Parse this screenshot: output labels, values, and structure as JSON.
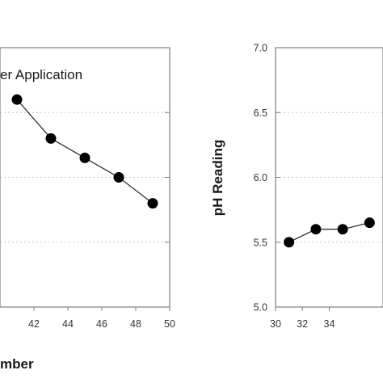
{
  "chart_data": [
    {
      "type": "line",
      "xlabel": "mber",
      "ylabel": "",
      "xlim": [
        40,
        50
      ],
      "ylim": [
        5.0,
        7.0
      ],
      "x_ticks": [
        42,
        44,
        46,
        48,
        50
      ],
      "annotation": "er Application",
      "grid": "horizontal dotted",
      "series": [
        {
          "x": [
            41,
            43,
            45,
            47,
            49
          ],
          "y": [
            6.6,
            6.3,
            6.15,
            6.0,
            5.8
          ]
        }
      ]
    },
    {
      "type": "line",
      "xlabel": "",
      "ylabel": "pH Reading",
      "xlim": [
        30,
        38
      ],
      "ylim": [
        5.0,
        7.0
      ],
      "x_ticks": [
        30,
        32,
        34
      ],
      "y_ticks": [
        "5.0",
        "5.5",
        "6.0",
        "6.5",
        "7.0"
      ],
      "grid": "horizontal dotted",
      "series": [
        {
          "x": [
            31,
            33,
            35,
            37
          ],
          "y": [
            5.5,
            5.6,
            5.6,
            5.65
          ]
        }
      ]
    }
  ],
  "colors": {
    "marker": "#000000",
    "line": "#333333",
    "frame": "#7f7f7f",
    "grid": "#c8c8c8"
  }
}
